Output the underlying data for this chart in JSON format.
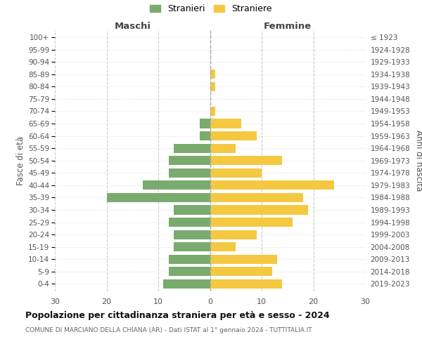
{
  "age_groups": [
    "0-4",
    "5-9",
    "10-14",
    "15-19",
    "20-24",
    "25-29",
    "30-34",
    "35-39",
    "40-44",
    "45-49",
    "50-54",
    "55-59",
    "60-64",
    "65-69",
    "70-74",
    "75-79",
    "80-84",
    "85-89",
    "90-94",
    "95-99",
    "100+"
  ],
  "birth_years": [
    "2019-2023",
    "2014-2018",
    "2009-2013",
    "2004-2008",
    "1999-2003",
    "1994-1998",
    "1989-1993",
    "1984-1988",
    "1979-1983",
    "1974-1978",
    "1969-1973",
    "1964-1968",
    "1959-1963",
    "1954-1958",
    "1949-1953",
    "1944-1948",
    "1939-1943",
    "1934-1938",
    "1929-1933",
    "1924-1928",
    "≤ 1923"
  ],
  "males": [
    9,
    8,
    8,
    7,
    7,
    8,
    7,
    20,
    13,
    8,
    8,
    7,
    2,
    2,
    0,
    0,
    0,
    0,
    0,
    0,
    0
  ],
  "females": [
    14,
    12,
    13,
    5,
    9,
    16,
    19,
    18,
    24,
    10,
    14,
    5,
    9,
    6,
    1,
    0,
    1,
    1,
    0,
    0,
    0
  ],
  "male_color": "#7aab6e",
  "female_color": "#f5c842",
  "title": "Popolazione per cittadinanza straniera per età e sesso - 2024",
  "subtitle": "COMUNE DI MARCIANO DELLA CHIANA (AR) - Dati ISTAT al 1° gennaio 2024 - TUTTITALIA.IT",
  "label_maschi": "Maschi",
  "label_femmine": "Femmine",
  "ylabel_left": "Fasce di età",
  "ylabel_right": "Anni di nascita",
  "legend_male": "Stranieri",
  "legend_female": "Straniere",
  "xlim": 30
}
